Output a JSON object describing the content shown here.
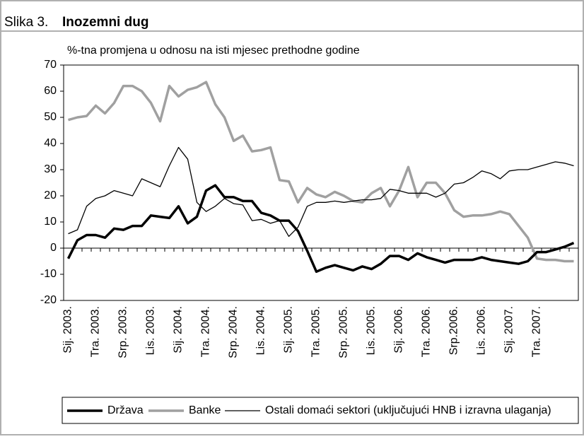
{
  "chart_data": {
    "type": "line",
    "figure_label": "Slika 3.",
    "title": "Inozemni dug",
    "subtitle": "%-tna promjena u odnosu na isti mjesec prethodne godine",
    "categories": [
      "Sij. 2003.",
      null,
      null,
      "Tra. 2003.",
      null,
      null,
      "Srp. 2003.",
      null,
      null,
      "Lis. 2003.",
      null,
      null,
      "Sij. 2004.",
      null,
      null,
      "Tra. 2004.",
      null,
      null,
      "Srp. 2004.",
      null,
      null,
      "Lis. 2004.",
      null,
      null,
      "Sij. 2005.",
      null,
      null,
      "Tra. 2005.",
      null,
      null,
      "Srp. 2005.",
      null,
      null,
      "Lis. 2005.",
      null,
      null,
      "Sij. 2006.",
      null,
      null,
      "Tra. 2006.",
      null,
      null,
      "Srp.2006.",
      null,
      null,
      "Lis. 2006.",
      null,
      null,
      "Sij. 2007.",
      null,
      null,
      "Tra. 2007.",
      null,
      null,
      null,
      null
    ],
    "series": [
      {
        "name": "Država",
        "color": "#000000",
        "width": 3.5,
        "values": [
          -4,
          3,
          5,
          5,
          4,
          7.5,
          7,
          8.5,
          8.5,
          12.5,
          12,
          11.5,
          16,
          9.5,
          12,
          22,
          24,
          19.5,
          19.5,
          18,
          18,
          13.5,
          12.5,
          10.5,
          10.5,
          6.5,
          -1,
          -9,
          -7.5,
          -6.5,
          -7.5,
          -8.5,
          -7,
          -8,
          -6,
          -3,
          -3,
          -4.5,
          -2,
          -3.5,
          -4.5,
          -5.5,
          -4.5,
          -4.5,
          -4.5,
          -3.5,
          -4.5,
          -5,
          -5.5,
          -6,
          -5,
          -1.5,
          -1.5,
          -0.5,
          0.5,
          2
        ]
      },
      {
        "name": "Banke",
        "color": "#a0a0a0",
        "width": 3.5,
        "values": [
          49,
          50,
          50.5,
          54.5,
          51.5,
          55.5,
          62,
          62,
          60,
          55.5,
          48.5,
          62,
          58,
          60.5,
          61.5,
          63.5,
          55,
          50,
          41,
          43,
          37,
          37.5,
          38.5,
          26,
          25.5,
          17.5,
          23,
          20.5,
          19.5,
          21.5,
          20,
          18,
          17.5,
          21,
          23,
          16,
          22,
          31,
          19.5,
          25,
          25,
          21,
          14.5,
          12,
          12.5,
          12.5,
          13,
          14,
          13,
          8.5,
          4,
          -4,
          -4.5,
          -4.5,
          -5,
          -5
        ]
      },
      {
        "name": "Ostali domaći sektori (uključujući HNB i izravna ulaganja)",
        "color": "#000000",
        "width": 1.3,
        "values": [
          5.5,
          7,
          16,
          19,
          20,
          22,
          21,
          20,
          26.5,
          25,
          23.5,
          31.5,
          38.5,
          34,
          17.5,
          14,
          16,
          19,
          17,
          16.5,
          10.5,
          11,
          9.5,
          10.5,
          4.5,
          8,
          16,
          17.5,
          17.5,
          18,
          17.5,
          18,
          18.5,
          18.5,
          19,
          22.5,
          22,
          21,
          21,
          21,
          19.5,
          21,
          24.5,
          25,
          27,
          29.5,
          28.5,
          26.5,
          29.5,
          30,
          30,
          31,
          32,
          33,
          32.5,
          31.5
        ]
      }
    ],
    "ylim": [
      -20,
      70
    ],
    "yticks": [
      -20,
      -10,
      0,
      10,
      20,
      30,
      40,
      50,
      60,
      70
    ],
    "grid": false,
    "legend": "bottom"
  }
}
